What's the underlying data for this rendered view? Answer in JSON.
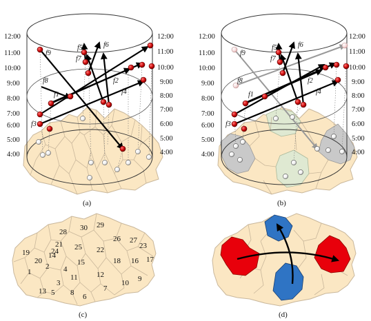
{
  "panels": {
    "a": {
      "caption": "(a)",
      "time_labels_left": [
        "12:00",
        "11:00",
        "10:00",
        "9:00",
        "8:00",
        "7:00",
        "6:00",
        "5:00",
        "4:00"
      ],
      "time_labels_right": [
        "12:00",
        "11:00",
        "10:00",
        "9:00",
        "8:00",
        "7:00",
        "6:00",
        "5:00",
        "4:00"
      ],
      "flow_labels": [
        "f9",
        "f5",
        "f6",
        "f7",
        "f8",
        "f1",
        "f2",
        "f4",
        "f3"
      ]
    },
    "b": {
      "caption": "(b)",
      "time_labels_left": [
        "12:00",
        "11:00",
        "10:00",
        "9:00",
        "8:00",
        "7:00",
        "6:00",
        "5:00",
        "4:00"
      ],
      "time_labels_right": [
        "12:00",
        "11:00",
        "10:00",
        "9:00",
        "8:00",
        "7:00",
        "6:00",
        "5:00",
        "4:00"
      ],
      "flow_labels": [
        "f9",
        "f5",
        "f6",
        "f7",
        "f8",
        "f1",
        "f2",
        "f4",
        "f3"
      ]
    },
    "c": {
      "caption": "(c)",
      "region_numbers": [
        "1",
        "2",
        "3",
        "4",
        "5",
        "6",
        "7",
        "8",
        "9",
        "10",
        "11",
        "12",
        "13",
        "14",
        "15",
        "16",
        "17",
        "18",
        "19",
        "20",
        "21",
        "22",
        "23",
        "24",
        "25",
        "26",
        "27",
        "28",
        "29",
        "30"
      ]
    },
    "d": {
      "caption": "(d)"
    }
  },
  "colors": {
    "map_fill": "#fbe7c3",
    "map_stroke": "#c9b79b",
    "red_region": "#e8000b",
    "blue_region": "#2f74c4",
    "grey_region": "#c9c9c9",
    "green_region": "#dfe9d2",
    "event_dot": "#d10d0d"
  }
}
